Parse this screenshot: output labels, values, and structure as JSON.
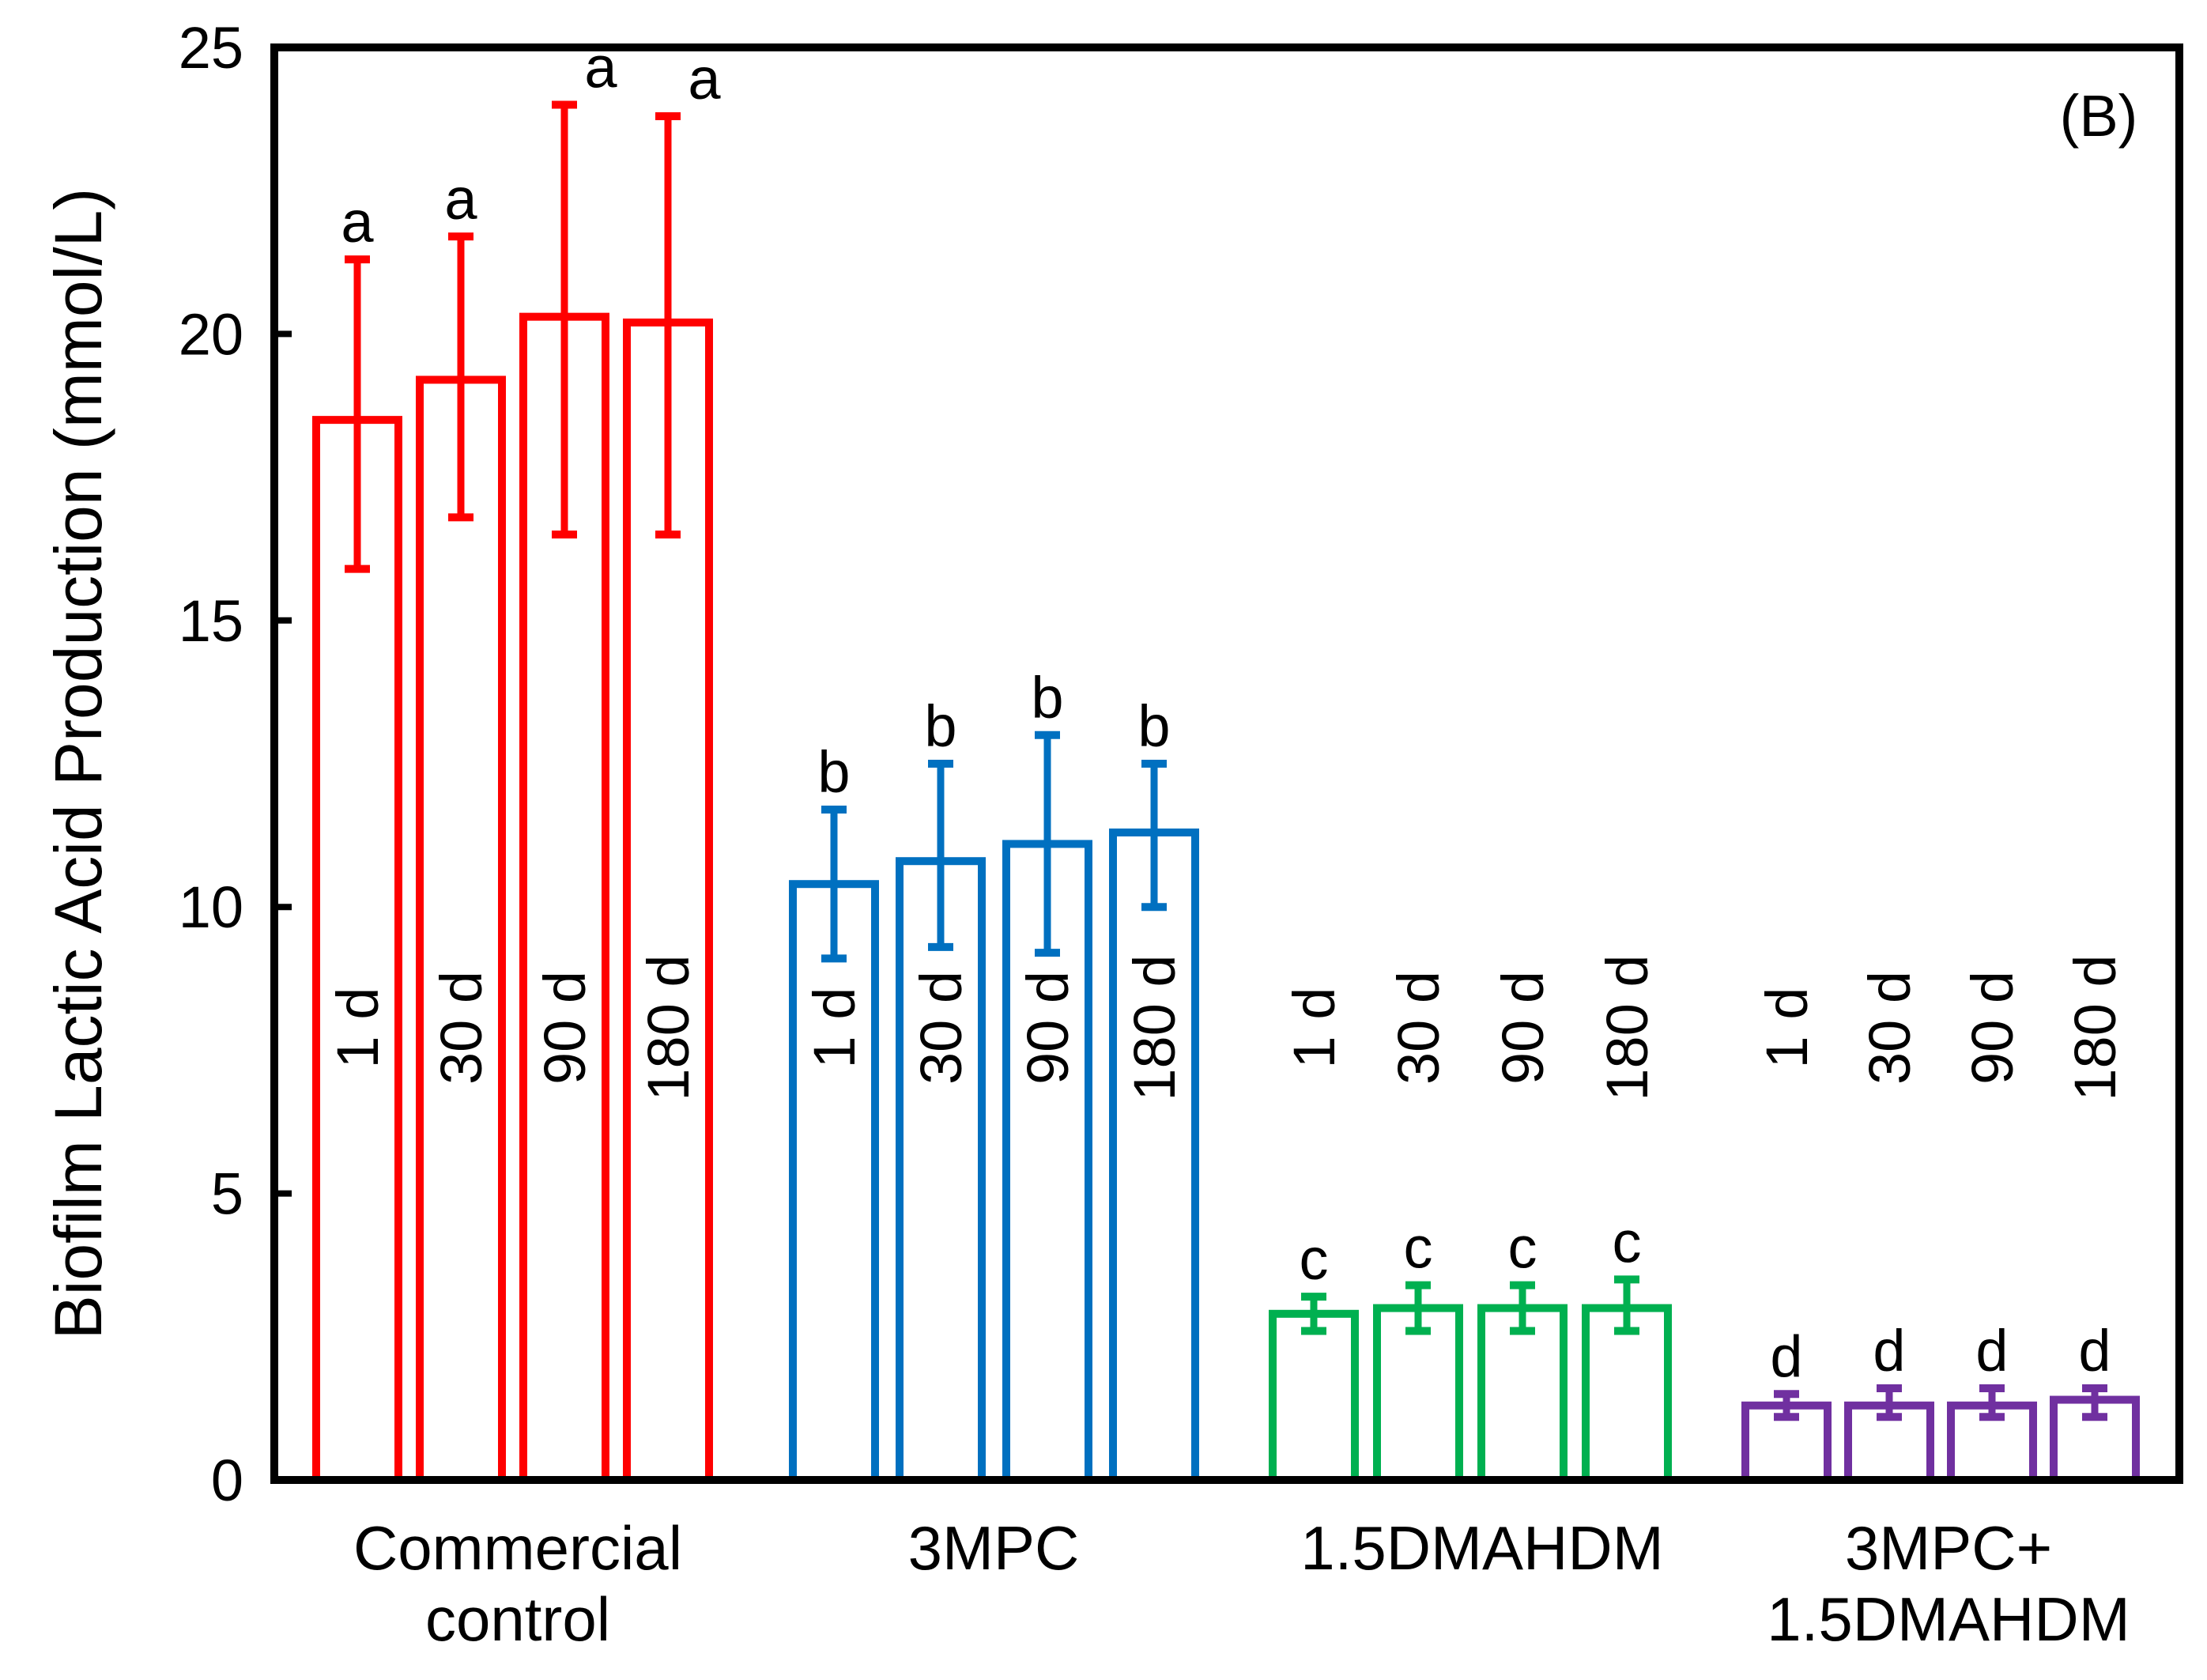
{
  "chart_data": {
    "type": "bar",
    "panel_label": "(B)",
    "title": "",
    "xlabel": "",
    "ylabel": "Biofilm Lactic Acid Production (mmol/L)",
    "ylim": [
      0,
      25
    ],
    "yticks": [
      "0",
      "5",
      "10",
      "15",
      "20",
      "25"
    ],
    "grid": false,
    "groups": [
      {
        "label_lines": [
          "Commercial",
          "control"
        ],
        "color": "#ff0000",
        "bars": [
          {
            "time": "1 d",
            "value": 18.5,
            "err_low": 15.9,
            "err_high": 21.3,
            "letter": "a"
          },
          {
            "time": "30 d",
            "value": 19.2,
            "err_low": 16.8,
            "err_high": 21.7,
            "letter": "a"
          },
          {
            "time": "90 d",
            "value": 20.3,
            "err_low": 16.5,
            "err_high": 24.0,
            "letter": "a"
          },
          {
            "time": "180 d",
            "value": 20.2,
            "err_low": 16.5,
            "err_high": 23.8,
            "letter": "a"
          }
        ]
      },
      {
        "label_lines": [
          "3MPC"
        ],
        "color": "#0070c0",
        "bars": [
          {
            "time": "1 d",
            "value": 10.4,
            "err_low": 9.1,
            "err_high": 11.7,
            "letter": "b"
          },
          {
            "time": "30 d",
            "value": 10.8,
            "err_low": 9.3,
            "err_high": 12.5,
            "letter": "b"
          },
          {
            "time": "90 d",
            "value": 11.1,
            "err_low": 9.2,
            "err_high": 13.0,
            "letter": "b"
          },
          {
            "time": "180 d",
            "value": 11.3,
            "err_low": 10.0,
            "err_high": 12.5,
            "letter": "b"
          }
        ]
      },
      {
        "label_lines": [
          "1.5DMAHDM"
        ],
        "color": "#00b050",
        "bars": [
          {
            "time": "1 d",
            "value": 2.9,
            "err_low": 2.6,
            "err_high": 3.2,
            "letter": "c"
          },
          {
            "time": "30 d",
            "value": 3.0,
            "err_low": 2.6,
            "err_high": 3.4,
            "letter": "c"
          },
          {
            "time": "90 d",
            "value": 3.0,
            "err_low": 2.6,
            "err_high": 3.4,
            "letter": "c"
          },
          {
            "time": "180 d",
            "value": 3.0,
            "err_low": 2.6,
            "err_high": 3.5,
            "letter": "c"
          }
        ]
      },
      {
        "label_lines": [
          "3MPC+",
          "1.5DMAHDM"
        ],
        "color": "#7030a0",
        "bars": [
          {
            "time": "1 d",
            "value": 1.3,
            "err_low": 1.1,
            "err_high": 1.5,
            "letter": "d"
          },
          {
            "time": "30 d",
            "value": 1.3,
            "err_low": 1.1,
            "err_high": 1.6,
            "letter": "d"
          },
          {
            "time": "90 d",
            "value": 1.3,
            "err_low": 1.1,
            "err_high": 1.6,
            "letter": "d"
          },
          {
            "time": "180 d",
            "value": 1.4,
            "err_low": 1.1,
            "err_high": 1.6,
            "letter": "d"
          }
        ]
      }
    ]
  }
}
